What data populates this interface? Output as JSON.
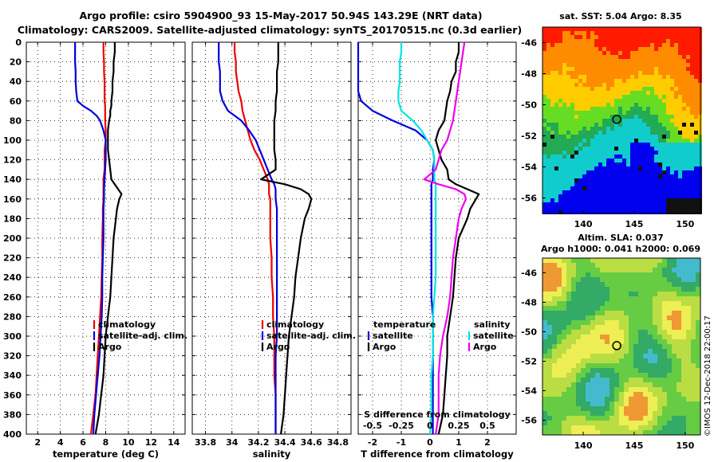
{
  "header": {
    "line1": "Argo profile: csiro 5904900_93 15-May-2017 50.94S 143.29E (NRT data)",
    "line2": "Climatology: CARS2009. Satellite-adjusted climatology: synTS_20170515.nc (0.3d earlier)"
  },
  "colors": {
    "climatology": "#ee0000",
    "satellite": "#0000dd",
    "argo": "#000000",
    "sat_salinity": "#00e5e5",
    "argo_salinity": "#ee00ee"
  },
  "depth_axis": {
    "min": 0,
    "max": 400,
    "ticks": [
      0,
      20,
      40,
      60,
      80,
      100,
      120,
      140,
      160,
      180,
      200,
      220,
      240,
      260,
      280,
      300,
      320,
      340,
      360,
      380,
      400
    ]
  },
  "chart_data": [
    {
      "type": "line",
      "id": "temperature",
      "xlabel": "temperature (deg C)",
      "ylabel": "",
      "xlim": [
        1,
        15
      ],
      "ylim": [
        400,
        0
      ],
      "xticks": [
        2,
        4,
        6,
        8,
        10,
        12,
        14
      ],
      "grid": true,
      "legend": [
        "climatology",
        "satellite-adj. clim.",
        "Argo"
      ],
      "depth": [
        0,
        10,
        20,
        30,
        40,
        50,
        60,
        65,
        70,
        75,
        80,
        90,
        100,
        110,
        120,
        130,
        140,
        150,
        155,
        160,
        170,
        180,
        200,
        220,
        240,
        260,
        280,
        300,
        320,
        340,
        360,
        380,
        400
      ],
      "series": [
        {
          "name": "climatology",
          "values": [
            7.8,
            7.8,
            7.85,
            7.85,
            7.9,
            7.9,
            7.9,
            7.95,
            7.95,
            7.95,
            7.95,
            8.0,
            8.0,
            7.9,
            7.9,
            7.9,
            7.8,
            7.8,
            7.8,
            7.8,
            7.75,
            7.75,
            7.7,
            7.7,
            7.65,
            7.6,
            7.5,
            7.4,
            7.3,
            7.2,
            7.1,
            6.9,
            6.7
          ]
        },
        {
          "name": "satellite-adj. clim.",
          "values": [
            5.3,
            5.3,
            5.3,
            5.35,
            5.35,
            5.4,
            5.5,
            6.0,
            6.7,
            7.2,
            7.5,
            7.8,
            8.0,
            8.0,
            8.0,
            7.95,
            7.9,
            7.85,
            7.85,
            7.85,
            7.8,
            7.8,
            7.8,
            7.75,
            7.7,
            7.7,
            7.65,
            7.55,
            7.45,
            7.3,
            7.15,
            7.0,
            6.9
          ]
        },
        {
          "name": "Argo",
          "values": [
            8.8,
            8.8,
            8.7,
            8.7,
            8.6,
            8.6,
            8.5,
            8.5,
            8.4,
            8.4,
            8.3,
            8.2,
            8.2,
            8.2,
            8.3,
            8.4,
            8.5,
            9.1,
            9.4,
            9.2,
            9.0,
            8.9,
            8.7,
            8.6,
            8.5,
            8.4,
            8.2,
            8.0,
            7.9,
            7.8,
            7.6,
            7.4,
            7.1
          ]
        }
      ]
    },
    {
      "type": "line",
      "id": "salinity",
      "xlabel": "salinity",
      "ylabel": "",
      "xlim": [
        33.7,
        34.9
      ],
      "ylim": [
        400,
        0
      ],
      "xticks": [
        33.8,
        34,
        34.2,
        34.4,
        34.6,
        34.8
      ],
      "grid": true,
      "legend": [
        "climatology",
        "satellite-adj. clim.",
        "Argo"
      ],
      "depth": [
        0,
        10,
        20,
        30,
        40,
        50,
        60,
        70,
        80,
        90,
        100,
        110,
        120,
        130,
        140,
        145,
        150,
        155,
        160,
        170,
        180,
        200,
        220,
        240,
        260,
        280,
        300,
        320,
        340,
        360,
        380,
        400
      ],
      "series": [
        {
          "name": "climatology",
          "values": [
            34.02,
            34.02,
            34.03,
            34.03,
            34.04,
            34.05,
            34.07,
            34.08,
            34.1,
            34.12,
            34.14,
            34.17,
            34.21,
            34.24,
            34.27,
            34.28,
            34.28,
            34.28,
            34.29,
            34.29,
            34.29,
            34.29,
            34.3,
            34.3,
            34.31,
            34.31,
            34.32,
            34.32,
            34.32,
            34.33,
            34.33,
            34.33
          ]
        },
        {
          "name": "satellite-adj. clim.",
          "values": [
            33.9,
            33.9,
            33.9,
            33.91,
            33.91,
            33.91,
            33.93,
            33.97,
            34.07,
            34.13,
            34.18,
            34.21,
            34.24,
            34.27,
            34.3,
            34.32,
            34.33,
            34.33,
            34.33,
            34.34,
            34.34,
            34.34,
            34.34,
            34.34,
            34.34,
            34.34,
            34.34,
            34.33,
            34.33,
            34.33,
            34.33,
            34.33
          ]
        },
        {
          "name": "Argo",
          "values": [
            34.35,
            34.35,
            34.35,
            34.34,
            34.34,
            34.34,
            34.33,
            34.33,
            34.32,
            34.32,
            34.32,
            34.32,
            34.33,
            34.33,
            34.22,
            34.4,
            34.52,
            34.58,
            34.6,
            34.58,
            34.55,
            34.52,
            34.5,
            34.48,
            34.47,
            34.45,
            34.43,
            34.42,
            34.41,
            34.4,
            34.39,
            34.37
          ]
        }
      ]
    },
    {
      "type": "line",
      "id": "difference",
      "xlabel": "T difference from climatology",
      "ylabel": "",
      "xlim": [
        -2.5,
        3
      ],
      "ylim": [
        400,
        0
      ],
      "xticks": [
        -2,
        -1,
        0,
        1,
        2
      ],
      "top_label": "S difference from climatology",
      "s_xticks": [
        "-0.5",
        "-0.25",
        "0",
        "0.25",
        "0.5"
      ],
      "s_xtick_values": [
        -2,
        -1,
        0,
        1,
        2
      ],
      "grid": true,
      "legend_left_title": "temperature",
      "legend_left": [
        "satellite",
        "Argo"
      ],
      "legend_right_title": "salinity",
      "legend_right": [
        "satellite",
        "Argo"
      ],
      "depth": [
        0,
        10,
        20,
        30,
        40,
        50,
        60,
        70,
        80,
        90,
        100,
        110,
        120,
        130,
        140,
        145,
        150,
        155,
        160,
        170,
        180,
        200,
        220,
        240,
        260,
        280,
        300,
        320,
        340,
        360,
        380,
        400
      ],
      "series": [
        {
          "name": "temperature satellite",
          "values": [
            -2.5,
            -2.5,
            -2.5,
            -2.5,
            -2.5,
            -2.5,
            -2.4,
            -2.0,
            -1.3,
            -0.5,
            -0.1,
            0.1,
            0.15,
            0.1,
            0.1,
            0.05,
            0.05,
            0.05,
            0.05,
            0.05,
            0.05,
            0.05,
            0.05,
            0.05,
            0.05,
            0.1,
            0.1,
            0.1,
            0.1,
            0.1,
            0.1,
            0.1
          ]
        },
        {
          "name": "temperature Argo",
          "values": [
            1.0,
            1.0,
            0.9,
            0.9,
            0.75,
            0.7,
            0.6,
            0.55,
            0.5,
            0.3,
            0.2,
            0.3,
            0.4,
            0.6,
            0.65,
            0.9,
            1.3,
            1.7,
            1.6,
            1.4,
            1.3,
            1.0,
            0.9,
            0.85,
            0.8,
            0.7,
            0.6,
            0.6,
            0.55,
            0.5,
            0.45,
            0.3
          ]
        },
        {
          "name": "salinity satellite",
          "values": [
            -1.0,
            -1.0,
            -1.05,
            -1.05,
            -1.05,
            -1.1,
            -1.1,
            -1.0,
            -0.6,
            -0.3,
            -0.1,
            0.1,
            0.15,
            0.15,
            0.15,
            0.2,
            0.2,
            0.2,
            0.2,
            0.2,
            0.2,
            0.2,
            0.2,
            0.2,
            0.15,
            0.1,
            0.1,
            0.1,
            0.05,
            0.05,
            0.05,
            0.0
          ]
        },
        {
          "name": "salinity Argo",
          "values": [
            1.2,
            1.15,
            1.1,
            1.05,
            1.0,
            0.95,
            0.9,
            0.85,
            0.8,
            0.7,
            0.6,
            0.4,
            0.3,
            0.2,
            -0.2,
            0.3,
            0.9,
            1.2,
            1.25,
            1.1,
            1.0,
            0.9,
            0.8,
            0.75,
            0.7,
            0.6,
            0.45,
            0.35,
            0.3,
            0.3,
            0.3,
            0.2
          ]
        }
      ]
    },
    {
      "type": "heatmap",
      "id": "sst_map",
      "title": "sat. SST: 5.04 Argo: 8.35",
      "xticks": [
        140,
        145,
        150
      ],
      "yticks": [
        -46,
        -48,
        -50,
        -52,
        -54,
        -56
      ],
      "xlim": [
        136,
        151.5
      ],
      "ylim": [
        -57,
        -45
      ],
      "marker": {
        "lon": 143.29,
        "lat": -50.94
      }
    },
    {
      "type": "heatmap",
      "id": "sla_map",
      "title_line1": "Altim. SLA: 0.037",
      "title_line2": "Argo h1000: 0.041 h2000: 0.069",
      "xticks": [
        140,
        145,
        150
      ],
      "yticks": [
        -46,
        -48,
        -50,
        -52,
        -54,
        -56
      ],
      "xlim": [
        136,
        151.5
      ],
      "ylim": [
        -57,
        -45
      ],
      "marker": {
        "lon": 143.29,
        "lat": -50.94
      }
    }
  ],
  "credit": "©IMOS 12-Dec-2018 22:00:17"
}
